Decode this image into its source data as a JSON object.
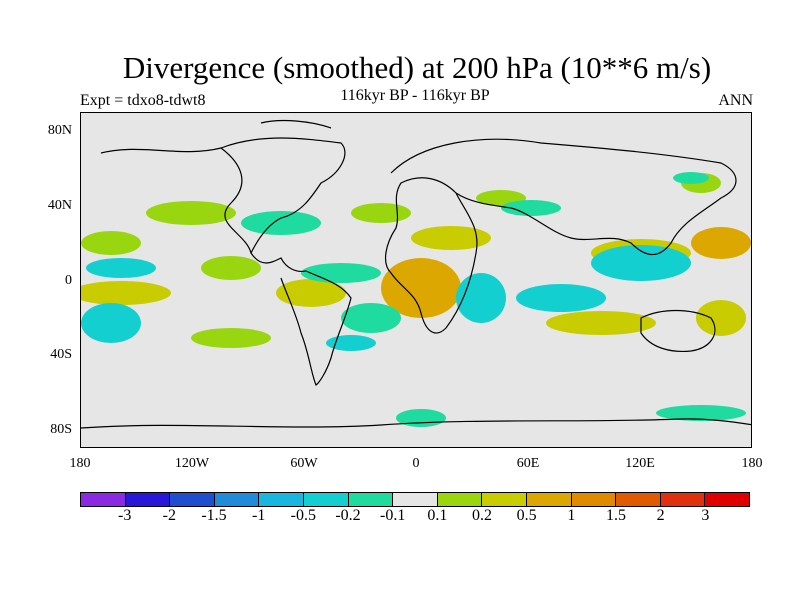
{
  "title": "Divergence (smoothed) at 200 hPa (10**6 m/s)",
  "subtitle": "116kyr BP - 116kyr BP",
  "left_label": "Expt = tdxo8-tdwt8",
  "right_label": "ANN",
  "y_ticks": [
    "80N",
    "40N",
    "0",
    "40S",
    "80S"
  ],
  "x_ticks": [
    "180",
    "120W",
    "60W",
    "0",
    "60E",
    "120E",
    "180"
  ],
  "colorbar": {
    "colors": [
      "#8a2be2",
      "#2a18d8",
      "#1f4fd0",
      "#1f8bd9",
      "#19b6e0",
      "#14cfcf",
      "#1fdba0",
      "#e6e6e6",
      "#99d60f",
      "#c8cc00",
      "#dca800",
      "#e08a00",
      "#e05a00",
      "#e03010",
      "#e00000"
    ],
    "labels": [
      "-3",
      "-2",
      "-1.5",
      "-1",
      "-0.5",
      "-0.2",
      "-0.1",
      "0.1",
      "0.2",
      "0.5",
      "1",
      "1.5",
      "2",
      "3"
    ]
  },
  "map_fields": {
    "colors": {
      "neg_weak": "#1fdba0",
      "neg_mid": "#14cfcf",
      "pos_weak": "#99d60f",
      "pos_mid": "#c8cc00",
      "pos_strong": "#dca800"
    }
  }
}
